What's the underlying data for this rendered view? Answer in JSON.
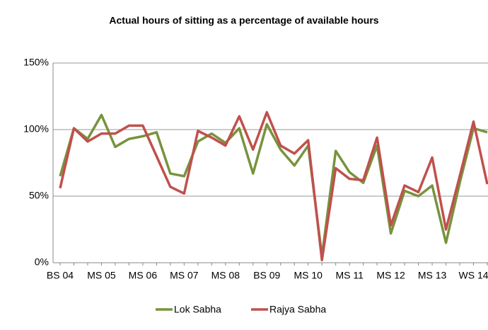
{
  "chart_data": {
    "type": "line",
    "title": "Actual hours of sitting as a percentage of available hours",
    "categories": [
      "BS 04",
      null,
      null,
      "MS 05",
      null,
      null,
      "MS 06",
      null,
      null,
      "MS 07",
      null,
      null,
      "MS 08",
      null,
      null,
      "BS 09",
      null,
      null,
      "MS 10",
      null,
      null,
      "MS 11",
      null,
      null,
      "MS 12",
      null,
      null,
      "MS 13",
      null,
      null,
      "WS 14",
      null
    ],
    "series": [
      {
        "name": "Lok Sabha",
        "color": "#77933c",
        "values": [
          65,
          101,
          93,
          111,
          87,
          93,
          95,
          98,
          67,
          65,
          91,
          97,
          90,
          101,
          67,
          104,
          85,
          73,
          88,
          5,
          84,
          68,
          60,
          88,
          22,
          54,
          50,
          58,
          15,
          60,
          101,
          98
        ]
      },
      {
        "name": "Rajya Sabha",
        "color": "#c0504d",
        "values": [
          56,
          101,
          91,
          97,
          97,
          103,
          103,
          80,
          57,
          52,
          99,
          94,
          88,
          110,
          85,
          113,
          88,
          82,
          92,
          2,
          71,
          63,
          62,
          94,
          28,
          58,
          53,
          79,
          25,
          65,
          106,
          59
        ]
      }
    ],
    "ylim": [
      0,
      150
    ],
    "yticks": [
      {
        "value": 0,
        "label": "0%"
      },
      {
        "value": 50,
        "label": "50%"
      },
      {
        "value": 100,
        "label": "100%"
      },
      {
        "value": 150,
        "label": "150%"
      }
    ],
    "grid": true,
    "legend": "bottom"
  }
}
